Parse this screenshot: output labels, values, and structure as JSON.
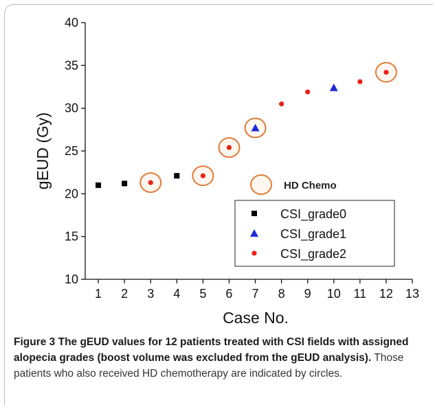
{
  "chart_data": {
    "type": "scatter",
    "title": "",
    "xlabel": "Case No.",
    "ylabel": "gEUD (Gy)",
    "xlim": [
      0.5,
      13
    ],
    "ylim": [
      10,
      40
    ],
    "x_ticks": [
      1,
      2,
      3,
      4,
      5,
      6,
      7,
      8,
      9,
      10,
      11,
      12,
      13
    ],
    "y_ticks": [
      10,
      15,
      20,
      25,
      30,
      35,
      40
    ],
    "grid": false,
    "legend_position": "lower-right",
    "series": [
      {
        "name": "CSI_grade0",
        "marker": "square",
        "color": "#000000",
        "points": [
          {
            "x": 1,
            "y": 21.0
          },
          {
            "x": 2,
            "y": 21.2
          },
          {
            "x": 4,
            "y": 22.1
          }
        ]
      },
      {
        "name": "CSI_grade1",
        "marker": "triangle",
        "color": "#1f2bd6",
        "points": [
          {
            "x": 7,
            "y": 27.7
          },
          {
            "x": 10,
            "y": 32.4
          }
        ]
      },
      {
        "name": "CSI_grade2",
        "marker": "circle",
        "color": "#e8221b",
        "points": [
          {
            "x": 3,
            "y": 21.3
          },
          {
            "x": 5,
            "y": 22.1
          },
          {
            "x": 6,
            "y": 25.4
          },
          {
            "x": 8,
            "y": 30.5
          },
          {
            "x": 9,
            "y": 31.9
          },
          {
            "x": 11,
            "y": 33.1
          },
          {
            "x": 12,
            "y": 34.2
          }
        ]
      }
    ],
    "hd_chemo_cases": [
      3,
      5,
      6,
      7,
      12
    ],
    "annotation_label": "HD Chemo",
    "annotation_color": "#e07b39"
  },
  "caption": {
    "lead": "Figure 3 The gEUD values for 12 patients treated with CSI fields with assigned alopecia grades (boost volume was excluded from the gEUD analysis).",
    "body": " Those patients who also received HD chemotherapy are indicated by circles."
  }
}
